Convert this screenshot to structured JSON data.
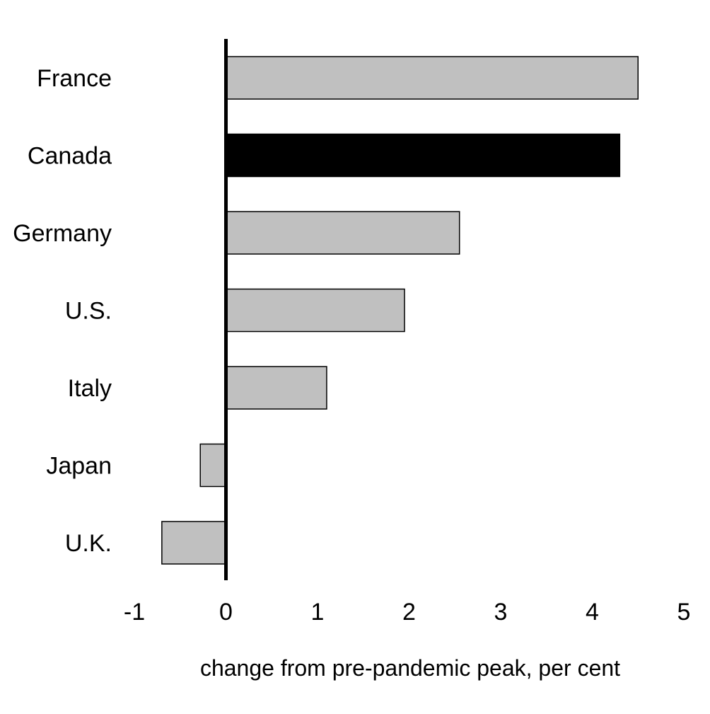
{
  "chart_data": {
    "type": "bar",
    "orientation": "horizontal",
    "categories": [
      "France",
      "Canada",
      "Germany",
      "U.S.",
      "Italy",
      "Japan",
      "U.K."
    ],
    "values": [
      4.5,
      4.3,
      2.55,
      1.95,
      1.1,
      -0.28,
      -0.7
    ],
    "highlight": "Canada",
    "xlabel": "change from pre-pandemic peak, per cent",
    "ylabel": "",
    "title": "",
    "xlim": [
      -1,
      5
    ],
    "xticks": [
      "-1",
      "0",
      "1",
      "2",
      "3",
      "4",
      "5"
    ],
    "grid": false,
    "legend": "none",
    "colors": {
      "default_bar": "#c0c0c0",
      "highlight_bar": "#000000",
      "bar_outline": "#000000",
      "zero_line": "#000000"
    }
  }
}
